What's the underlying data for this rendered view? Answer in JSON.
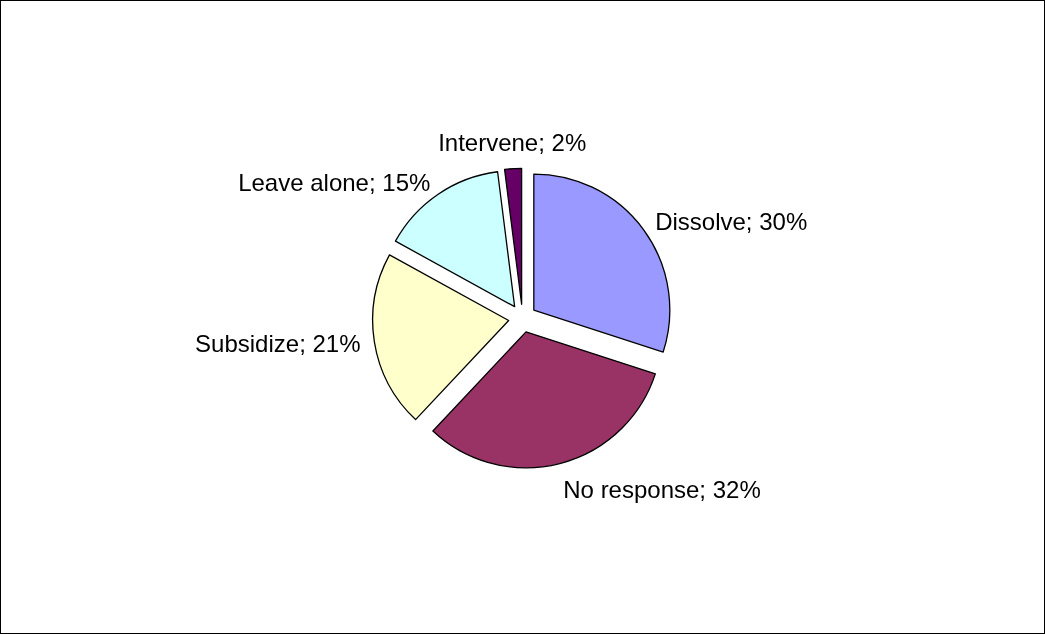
{
  "chart_data": {
    "type": "pie",
    "categories": [
      "Dissolve",
      "No response",
      "Subsidize",
      "Leave alone",
      "Intervene"
    ],
    "values": [
      30,
      32,
      21,
      15,
      2
    ],
    "value_labels": [
      "30%",
      "32%",
      "21%",
      "15%",
      "2%"
    ],
    "colors": [
      "#9999ff",
      "#993366",
      "#ffffcc",
      "#ccffff",
      "#660066"
    ],
    "legend": false
  }
}
